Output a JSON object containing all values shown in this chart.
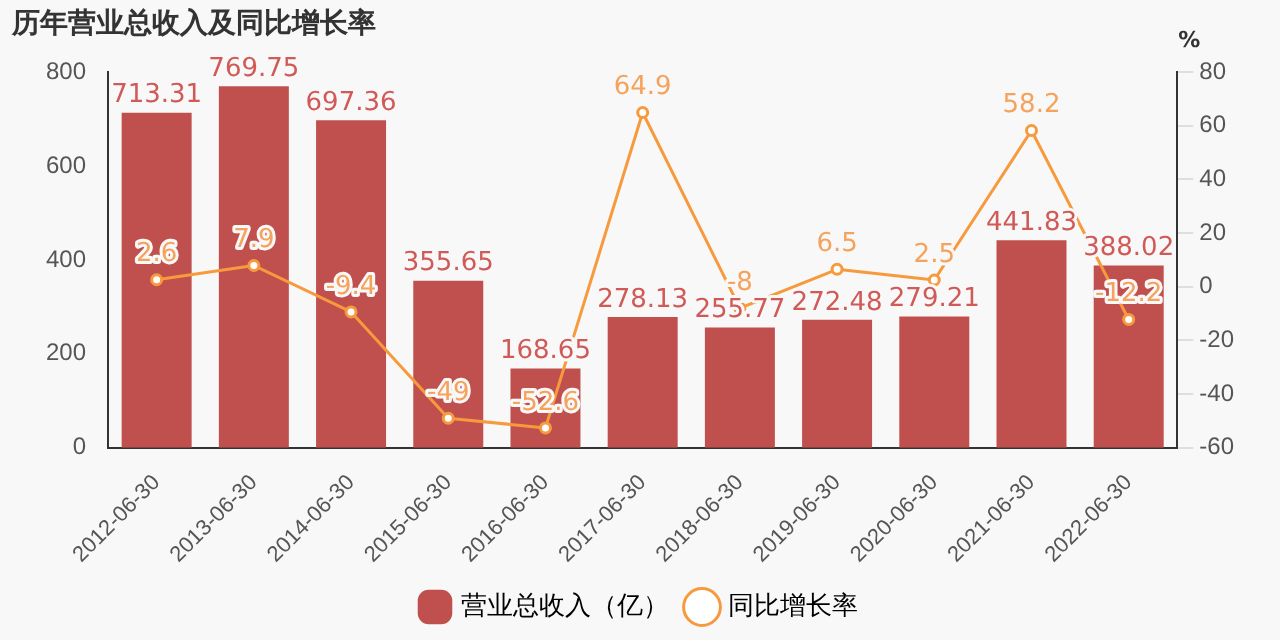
{
  "chart_data": {
    "type": "bar",
    "title": "历年营业总收入及同比增长率",
    "categories": [
      "2012-06-30",
      "2013-06-30",
      "2014-06-30",
      "2015-06-30",
      "2016-06-30",
      "2017-06-30",
      "2018-06-30",
      "2019-06-30",
      "2020-06-30",
      "2021-06-30",
      "2022-06-30"
    ],
    "series": [
      {
        "name": "营业总收入（亿）",
        "color": "#c0504d",
        "values": [
          713.31,
          769.75,
          697.36,
          355.65,
          168.65,
          278.13,
          255.77,
          272.48,
          279.21,
          441.83,
          388.02
        ]
      },
      {
        "name": "同比增长率",
        "type": "line",
        "axis": "y2",
        "color": "#f79a3e",
        "marker": "circle",
        "values": [
          2.6,
          7.9,
          -9.4,
          -49,
          -52.6,
          64.9,
          -8,
          6.5,
          2.5,
          58.2,
          -12.2
        ]
      }
    ],
    "ylim": [
      0,
      800
    ],
    "yticks": [
      0,
      200,
      400,
      600,
      800
    ],
    "y2label": "%",
    "y2lim": [
      -60,
      80
    ],
    "y2ticks": [
      -60,
      -40,
      -20,
      0,
      20,
      40,
      60,
      80
    ],
    "data_labels": true,
    "grid": false,
    "legend": "bottom"
  }
}
